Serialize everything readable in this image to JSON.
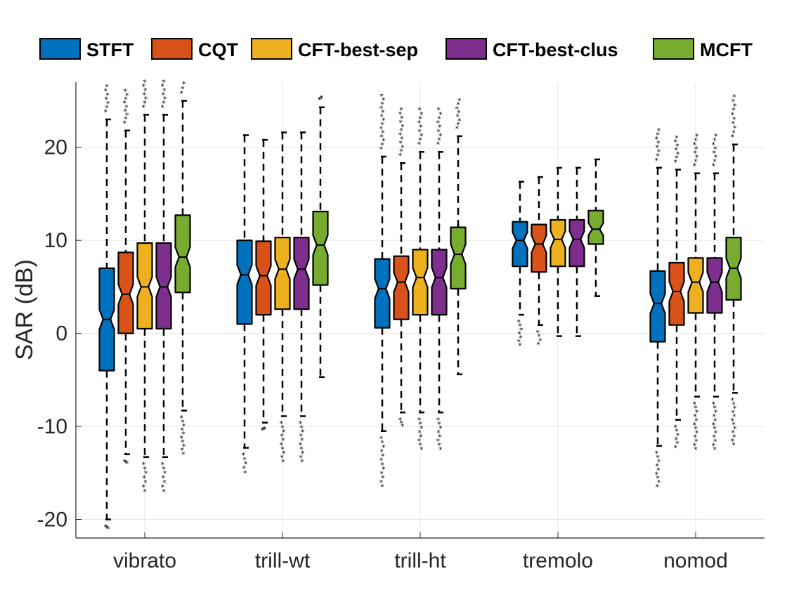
{
  "chart_data": {
    "type": "box",
    "ylabel": "SAR (dB)",
    "xlabel": "",
    "ylim": [
      -22,
      27
    ],
    "yticks": [
      -20,
      -10,
      0,
      10,
      20
    ],
    "grid": true,
    "legend_position": "top",
    "categories": [
      "vibrato",
      "trill-wt",
      "trill-ht",
      "tremolo",
      "nomod"
    ],
    "series": [
      {
        "name": "STFT",
        "color": "#0072BD",
        "boxes": [
          {
            "q1": -4,
            "median": 1.5,
            "q3": 7,
            "whisker_low": -20,
            "whisker_high": 23,
            "outliers_low": [
              -21
            ],
            "outliers_high": [
              24.5,
              26.5
            ]
          },
          {
            "q1": 1,
            "median": 6.3,
            "q3": 10,
            "whisker_low": -12.3,
            "whisker_high": 21.3,
            "outliers_low": [
              -13.5,
              -15
            ],
            "outliers_high": []
          },
          {
            "q1": 0.6,
            "median": 4.8,
            "q3": 8,
            "whisker_low": -10.5,
            "whisker_high": 19,
            "outliers_low": [
              -12,
              -14,
              -16.5
            ],
            "outliers_high": [
              22,
              25.5
            ]
          },
          {
            "q1": 7.2,
            "median": 10,
            "q3": 12,
            "whisker_low": 2,
            "whisker_high": 16.3,
            "outliers_low": [
              -1.3
            ],
            "outliers_high": []
          },
          {
            "q1": -0.9,
            "median": 3.2,
            "q3": 6.7,
            "whisker_low": -12.1,
            "whisker_high": 17.8,
            "outliers_low": [
              -14,
              -16.5
            ],
            "outliers_high": [
              19.5,
              21.8
            ]
          }
        ]
      },
      {
        "name": "CQT",
        "color": "#D95319",
        "boxes": [
          {
            "q1": 0,
            "median": 4.2,
            "q3": 8.7,
            "whisker_low": -13,
            "whisker_high": 21.8,
            "outliers_low": [
              -14
            ],
            "outliers_high": [
              23,
              26
            ]
          },
          {
            "q1": 2,
            "median": 6.2,
            "q3": 9.9,
            "whisker_low": -9.6,
            "whisker_high": 20.8,
            "outliers_low": [
              -10.3
            ],
            "outliers_high": []
          },
          {
            "q1": 1.5,
            "median": 5.5,
            "q3": 8.3,
            "whisker_low": -8.5,
            "whisker_high": 18.3,
            "outliers_low": [
              -10
            ],
            "outliers_high": [
              20.5,
              24
            ]
          },
          {
            "q1": 6.6,
            "median": 9.6,
            "q3": 11.7,
            "whisker_low": 0.9,
            "whisker_high": 16.8,
            "outliers_low": [
              -1.2
            ],
            "outliers_high": []
          },
          {
            "q1": 0.9,
            "median": 4.5,
            "q3": 7.6,
            "whisker_low": -9.3,
            "whisker_high": 17.6,
            "outliers_low": [
              -11,
              -12.3
            ],
            "outliers_high": [
              18.8,
              21
            ]
          }
        ]
      },
      {
        "name": "CFT-best-sep",
        "color": "#EDB120",
        "boxes": [
          {
            "q1": 0.5,
            "median": 5,
            "q3": 9.7,
            "whisker_low": -13.3,
            "whisker_high": 23.5,
            "outliers_low": [
              -15,
              -17
            ],
            "outliers_high": [
              25,
              27
            ]
          },
          {
            "q1": 2.6,
            "median": 6.9,
            "q3": 10.3,
            "whisker_low": -8.9,
            "whisker_high": 21.6,
            "outliers_low": [
              -11,
              -13.8
            ],
            "outliers_high": []
          },
          {
            "q1": 2,
            "median": 6,
            "q3": 9,
            "whisker_low": -8.5,
            "whisker_high": 19.5,
            "outliers_low": [
              -11,
              -12.5
            ],
            "outliers_high": [
              21.5,
              24
            ]
          },
          {
            "q1": 7.2,
            "median": 10.1,
            "q3": 12.2,
            "whisker_low": -0.3,
            "whisker_high": 17.8,
            "outliers_low": [],
            "outliers_high": []
          },
          {
            "q1": 2.2,
            "median": 5.5,
            "q3": 8.1,
            "whisker_low": -6.8,
            "whisker_high": 17.2,
            "outliers_low": [
              -9,
              -12.5
            ],
            "outliers_high": [
              19,
              21.2
            ]
          }
        ]
      },
      {
        "name": "CFT-best-clus",
        "color": "#7E2F8E",
        "boxes": [
          {
            "q1": 0.5,
            "median": 5,
            "q3": 9.7,
            "whisker_low": -13.3,
            "whisker_high": 23.5,
            "outliers_low": [
              -15,
              -17
            ],
            "outliers_high": [
              25,
              27
            ]
          },
          {
            "q1": 2.6,
            "median": 6.9,
            "q3": 10.3,
            "whisker_low": -8.9,
            "whisker_high": 21.6,
            "outliers_low": [
              -11,
              -13.8
            ],
            "outliers_high": []
          },
          {
            "q1": 2,
            "median": 6,
            "q3": 9,
            "whisker_low": -8.5,
            "whisker_high": 19.5,
            "outliers_low": [
              -11,
              -12.5
            ],
            "outliers_high": [
              21.5,
              24
            ]
          },
          {
            "q1": 7.2,
            "median": 10.1,
            "q3": 12.2,
            "whisker_low": -0.3,
            "whisker_high": 17.8,
            "outliers_low": [],
            "outliers_high": []
          },
          {
            "q1": 2.2,
            "median": 5.5,
            "q3": 8.1,
            "whisker_low": -6.8,
            "whisker_high": 17.2,
            "outliers_low": [
              -9,
              -12.5
            ],
            "outliers_high": [
              19,
              21.2
            ]
          }
        ]
      },
      {
        "name": "MCFT",
        "color": "#77AC30",
        "boxes": [
          {
            "q1": 4.4,
            "median": 8.2,
            "q3": 12.7,
            "whisker_low": -8.3,
            "whisker_high": 25,
            "outliers_low": [
              -10,
              -13
            ],
            "outliers_high": [
              26.8
            ]
          },
          {
            "q1": 5.2,
            "median": 9.5,
            "q3": 13.1,
            "whisker_low": -4.7,
            "whisker_high": 24.3,
            "outliers_low": [],
            "outliers_high": [
              25.3
            ]
          },
          {
            "q1": 4.8,
            "median": 8.5,
            "q3": 11.4,
            "whisker_low": -4.4,
            "whisker_high": 21.2,
            "outliers_low": [],
            "outliers_high": [
              23,
              25
            ]
          },
          {
            "q1": 9.6,
            "median": 11.2,
            "q3": 13.2,
            "whisker_low": 4,
            "whisker_high": 18.7,
            "outliers_low": [],
            "outliers_high": []
          },
          {
            "q1": 3.6,
            "median": 7,
            "q3": 10.3,
            "whisker_low": -6.4,
            "whisker_high": 20.3,
            "outliers_low": [
              -9,
              -12
            ],
            "outliers_high": [
              22,
              25.4
            ]
          }
        ]
      }
    ]
  }
}
